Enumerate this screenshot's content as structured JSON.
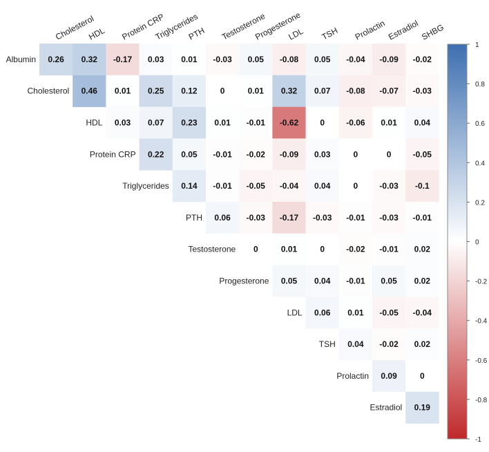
{
  "chart_data": {
    "type": "heatmap",
    "title": "",
    "variables": [
      "Albumin",
      "Cholesterol",
      "HDL",
      "Protein CRP",
      "Triglycerides",
      "PTH",
      "Testosterone",
      "Progesterone",
      "LDL",
      "TSH",
      "Prolactin",
      "Estradiol",
      "SHBG"
    ],
    "row_labels": [
      "Albumin",
      "Cholesterol",
      "HDL",
      "Protein CRP",
      "Triglycerides",
      "PTH",
      "Testosterone",
      "Progesterone",
      "LDL",
      "TSH",
      "Prolactin",
      "Estradiol"
    ],
    "column_labels": [
      "Cholesterol",
      "HDL",
      "Protein CRP",
      "Triglycerides",
      "PTH",
      "Testosterone",
      "Progesterone",
      "LDL",
      "TSH",
      "Prolactin",
      "Estradiol",
      "SHBG"
    ],
    "values": [
      [
        "0.26",
        "0.32",
        "-0.17",
        "0.03",
        "0.01",
        "-0.03",
        "0.05",
        "-0.08",
        "0.05",
        "-0.04",
        "-0.09",
        "-0.02"
      ],
      [
        null,
        "0.46",
        "0.01",
        "0.25",
        "0.12",
        "0",
        "0.01",
        "0.32",
        "0.07",
        "-0.08",
        "-0.07",
        "-0.03"
      ],
      [
        null,
        null,
        "0.03",
        "0.07",
        "0.23",
        "0.01",
        "-0.01",
        "-0.62",
        "0",
        "-0.06",
        "0.01",
        "0.04"
      ],
      [
        null,
        null,
        null,
        "0.22",
        "0.05",
        "-0.01",
        "-0.02",
        "-0.09",
        "0.03",
        "0",
        "0",
        "-0.05"
      ],
      [
        null,
        null,
        null,
        null,
        "0.14",
        "-0.01",
        "-0.05",
        "-0.04",
        "0.04",
        "0",
        "-0.03",
        "-0.1"
      ],
      [
        null,
        null,
        null,
        null,
        null,
        "0.06",
        "-0.03",
        "-0.17",
        "-0.03",
        "-0.01",
        "-0.03",
        "-0.01"
      ],
      [
        null,
        null,
        null,
        null,
        null,
        null,
        "0",
        "0.01",
        "0",
        "-0.02",
        "-0.01",
        "0.02"
      ],
      [
        null,
        null,
        null,
        null,
        null,
        null,
        null,
        "0.05",
        "0.04",
        "-0.01",
        "0.05",
        "0.02"
      ],
      [
        null,
        null,
        null,
        null,
        null,
        null,
        null,
        null,
        "0.06",
        "0.01",
        "-0.05",
        "-0.04"
      ],
      [
        null,
        null,
        null,
        null,
        null,
        null,
        null,
        null,
        null,
        "0.04",
        "-0.02",
        "0.02"
      ],
      [
        null,
        null,
        null,
        null,
        null,
        null,
        null,
        null,
        null,
        null,
        "0.09",
        "0"
      ],
      [
        null,
        null,
        null,
        null,
        null,
        null,
        null,
        null,
        null,
        null,
        null,
        "0.19"
      ]
    ],
    "color_scale": {
      "range": [
        -1,
        1
      ],
      "ticks": [
        "1",
        "0.8",
        "0.6",
        "0.4",
        "0.2",
        "0",
        "-0.2",
        "-0.4",
        "-0.6",
        "-0.8",
        "-1"
      ],
      "positive_color": "#3E6FB0",
      "neutral_color": "#FFFFFF",
      "negative_color": "#C0292B"
    },
    "legend_placement": "right"
  }
}
